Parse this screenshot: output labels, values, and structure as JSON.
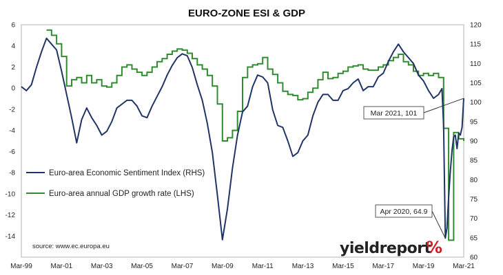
{
  "chart_data": {
    "type": "line",
    "title": "EURO-ZONE ESI & GDP",
    "x_tick_labels": [
      "Mar-99",
      "Mar-01",
      "Mar-03",
      "Mar-05",
      "Mar-07",
      "Mar-09",
      "Mar-11",
      "Mar-13",
      "Mar-15",
      "Mar-17",
      "Mar-19",
      "Mar-21"
    ],
    "x_range": [
      "1999-03",
      "2021-03"
    ],
    "y_left": {
      "label": "",
      "range": [
        -16,
        6
      ],
      "ticks": [
        6,
        4,
        2,
        0,
        -2,
        -4,
        -6,
        -8,
        -10,
        -12,
        -14
      ]
    },
    "y_right": {
      "label": "",
      "range": [
        60,
        120
      ],
      "ticks": [
        120,
        115,
        110,
        105,
        100,
        95,
        90,
        85,
        80,
        75,
        70,
        65,
        60
      ]
    },
    "grid": false,
    "legend_position": "bottom-left",
    "series": [
      {
        "name": "Euro-area Economic Sentiment Index (RHS)",
        "axis": "right",
        "color": "#1f3366",
        "points": [
          [
            "1999-03",
            104.0
          ],
          [
            "1999-06",
            103.0
          ],
          [
            "1999-09",
            104.5
          ],
          [
            "1999-12",
            109.0
          ],
          [
            "2000-03",
            113.0
          ],
          [
            "2000-06",
            116.5
          ],
          [
            "2000-09",
            115.0
          ],
          [
            "2000-12",
            113.5
          ],
          [
            "2001-03",
            108.0
          ],
          [
            "2001-06",
            102.0
          ],
          [
            "2001-09",
            96.0
          ],
          [
            "2001-12",
            89.5
          ],
          [
            "2002-03",
            95.5
          ],
          [
            "2002-06",
            98.5
          ],
          [
            "2002-09",
            96.0
          ],
          [
            "2002-12",
            94.0
          ],
          [
            "2003-03",
            91.5
          ],
          [
            "2003-06",
            92.5
          ],
          [
            "2003-09",
            95.0
          ],
          [
            "2003-12",
            98.5
          ],
          [
            "2004-03",
            99.5
          ],
          [
            "2004-06",
            100.5
          ],
          [
            "2004-09",
            100.5
          ],
          [
            "2004-12",
            99.0
          ],
          [
            "2005-03",
            96.5
          ],
          [
            "2005-06",
            96.0
          ],
          [
            "2005-09",
            99.0
          ],
          [
            "2005-12",
            101.5
          ],
          [
            "2006-03",
            104.0
          ],
          [
            "2006-06",
            107.0
          ],
          [
            "2006-09",
            109.5
          ],
          [
            "2006-12",
            111.5
          ],
          [
            "2007-03",
            112.5
          ],
          [
            "2007-06",
            112.0
          ],
          [
            "2007-09",
            109.0
          ],
          [
            "2007-12",
            104.5
          ],
          [
            "2008-03",
            100.5
          ],
          [
            "2008-06",
            94.5
          ],
          [
            "2008-09",
            87.0
          ],
          [
            "2008-12",
            76.0
          ],
          [
            "2009-03",
            64.5
          ],
          [
            "2009-06",
            72.5
          ],
          [
            "2009-09",
            83.0
          ],
          [
            "2009-12",
            91.5
          ],
          [
            "2010-03",
            97.5
          ],
          [
            "2010-06",
            99.0
          ],
          [
            "2010-09",
            104.0
          ],
          [
            "2010-12",
            107.0
          ],
          [
            "2011-03",
            106.5
          ],
          [
            "2011-06",
            105.0
          ],
          [
            "2011-09",
            98.0
          ],
          [
            "2011-12",
            94.0
          ],
          [
            "2012-03",
            93.5
          ],
          [
            "2012-06",
            90.0
          ],
          [
            "2012-09",
            86.0
          ],
          [
            "2012-12",
            87.0
          ],
          [
            "2013-03",
            90.0
          ],
          [
            "2013-06",
            91.5
          ],
          [
            "2013-09",
            96.5
          ],
          [
            "2013-12",
            100.0
          ],
          [
            "2014-03",
            102.0
          ],
          [
            "2014-06",
            102.0
          ],
          [
            "2014-09",
            100.5
          ],
          [
            "2014-12",
            100.5
          ],
          [
            "2015-03",
            103.0
          ],
          [
            "2015-06",
            103.5
          ],
          [
            "2015-09",
            105.0
          ],
          [
            "2015-12",
            106.0
          ],
          [
            "2016-03",
            103.0
          ],
          [
            "2016-06",
            104.0
          ],
          [
            "2016-09",
            104.0
          ],
          [
            "2016-12",
            106.5
          ],
          [
            "2017-03",
            107.5
          ],
          [
            "2017-06",
            110.5
          ],
          [
            "2017-09",
            113.0
          ],
          [
            "2017-12",
            115.0
          ],
          [
            "2018-03",
            113.0
          ],
          [
            "2018-06",
            111.5
          ],
          [
            "2018-09",
            110.0
          ],
          [
            "2018-12",
            107.0
          ],
          [
            "2019-03",
            105.5
          ],
          [
            "2019-06",
            103.0
          ],
          [
            "2019-09",
            101.0
          ],
          [
            "2019-12",
            102.0
          ],
          [
            "2020-02",
            103.5
          ],
          [
            "2020-03",
            94.0
          ],
          [
            "2020-04",
            64.9
          ],
          [
            "2020-05",
            67.5
          ],
          [
            "2020-06",
            75.5
          ],
          [
            "2020-07",
            82.0
          ],
          [
            "2020-08",
            87.5
          ],
          [
            "2020-09",
            91.0
          ],
          [
            "2020-10",
            91.5
          ],
          [
            "2020-11",
            88.0
          ],
          [
            "2020-12",
            92.0
          ],
          [
            "2021-01",
            91.5
          ],
          [
            "2021-02",
            93.5
          ],
          [
            "2021-03",
            101.0
          ]
        ]
      },
      {
        "name": "Euro-area annual GDP growth rate (LHS)",
        "axis": "left",
        "color": "#2e8b2e",
        "step": true,
        "points": [
          [
            "2000-06",
            5.5
          ],
          [
            "2000-09",
            5.0
          ],
          [
            "2000-12",
            4.2
          ],
          [
            "2001-03",
            3.0
          ],
          [
            "2001-06",
            0.2
          ],
          [
            "2001-09",
            0.8
          ],
          [
            "2001-12",
            1.0
          ],
          [
            "2002-03",
            0.5
          ],
          [
            "2002-06",
            1.2
          ],
          [
            "2002-09",
            0.5
          ],
          [
            "2002-12",
            0.8
          ],
          [
            "2003-03",
            0.2
          ],
          [
            "2003-06",
            0.1
          ],
          [
            "2003-09",
            0.5
          ],
          [
            "2003-12",
            1.2
          ],
          [
            "2004-03",
            2.0
          ],
          [
            "2004-06",
            2.2
          ],
          [
            "2004-09",
            1.8
          ],
          [
            "2004-12",
            1.5
          ],
          [
            "2005-03",
            1.2
          ],
          [
            "2005-06",
            1.5
          ],
          [
            "2005-09",
            2.0
          ],
          [
            "2005-12",
            2.5
          ],
          [
            "2006-03",
            2.8
          ],
          [
            "2006-06",
            3.2
          ],
          [
            "2006-09",
            3.5
          ],
          [
            "2006-12",
            3.7
          ],
          [
            "2007-03",
            3.6
          ],
          [
            "2007-06",
            3.3
          ],
          [
            "2007-09",
            2.8
          ],
          [
            "2007-12",
            2.2
          ],
          [
            "2008-03",
            1.8
          ],
          [
            "2008-06",
            1.2
          ],
          [
            "2008-09",
            0.2
          ],
          [
            "2008-12",
            -1.5
          ],
          [
            "2009-03",
            -5.0
          ],
          [
            "2009-06",
            -4.7
          ],
          [
            "2009-09",
            -4.0
          ],
          [
            "2009-12",
            -2.2
          ],
          [
            "2010-03",
            1.0
          ],
          [
            "2010-06",
            2.0
          ],
          [
            "2010-09",
            2.2
          ],
          [
            "2010-12",
            2.3
          ],
          [
            "2011-03",
            2.9
          ],
          [
            "2011-06",
            1.8
          ],
          [
            "2011-09",
            1.3
          ],
          [
            "2011-12",
            0.5
          ],
          [
            "2012-03",
            -0.3
          ],
          [
            "2012-06",
            -0.6
          ],
          [
            "2012-09",
            -0.7
          ],
          [
            "2012-12",
            -1.1
          ],
          [
            "2013-03",
            -1.0
          ],
          [
            "2013-06",
            -0.4
          ],
          [
            "2013-09",
            0.0
          ],
          [
            "2013-12",
            0.8
          ],
          [
            "2014-03",
            1.5
          ],
          [
            "2014-06",
            0.9
          ],
          [
            "2014-09",
            1.0
          ],
          [
            "2014-12",
            1.4
          ],
          [
            "2015-03",
            1.6
          ],
          [
            "2015-06",
            2.0
          ],
          [
            "2015-09",
            2.1
          ],
          [
            "2015-12",
            2.2
          ],
          [
            "2016-03",
            1.8
          ],
          [
            "2016-06",
            1.7
          ],
          [
            "2016-09",
            1.7
          ],
          [
            "2016-12",
            2.0
          ],
          [
            "2017-03",
            2.2
          ],
          [
            "2017-06",
            2.6
          ],
          [
            "2017-09",
            2.9
          ],
          [
            "2017-12",
            3.2
          ],
          [
            "2018-03",
            2.5
          ],
          [
            "2018-06",
            2.2
          ],
          [
            "2018-09",
            1.6
          ],
          [
            "2018-12",
            1.2
          ],
          [
            "2019-03",
            1.4
          ],
          [
            "2019-06",
            1.2
          ],
          [
            "2019-09",
            1.4
          ],
          [
            "2019-12",
            1.0
          ],
          [
            "2020-03",
            -3.8
          ],
          [
            "2020-06",
            -14.4
          ],
          [
            "2020-09",
            -4.2
          ],
          [
            "2020-12",
            -4.8
          ],
          [
            "2021-03",
            -5.0
          ]
        ]
      }
    ],
    "annotations": [
      {
        "label": "Mar 2021, 101",
        "x": "2021-03",
        "y": 101.0,
        "axis": "right"
      },
      {
        "label": "Apr 2020, 64.9",
        "x": "2020-04",
        "y": 64.9,
        "axis": "right"
      }
    ],
    "source": "source: www.ec.europa.eu",
    "brand": {
      "name": "yieldreport",
      "symbol": "%",
      "symbol_color": "#d01f26"
    }
  }
}
